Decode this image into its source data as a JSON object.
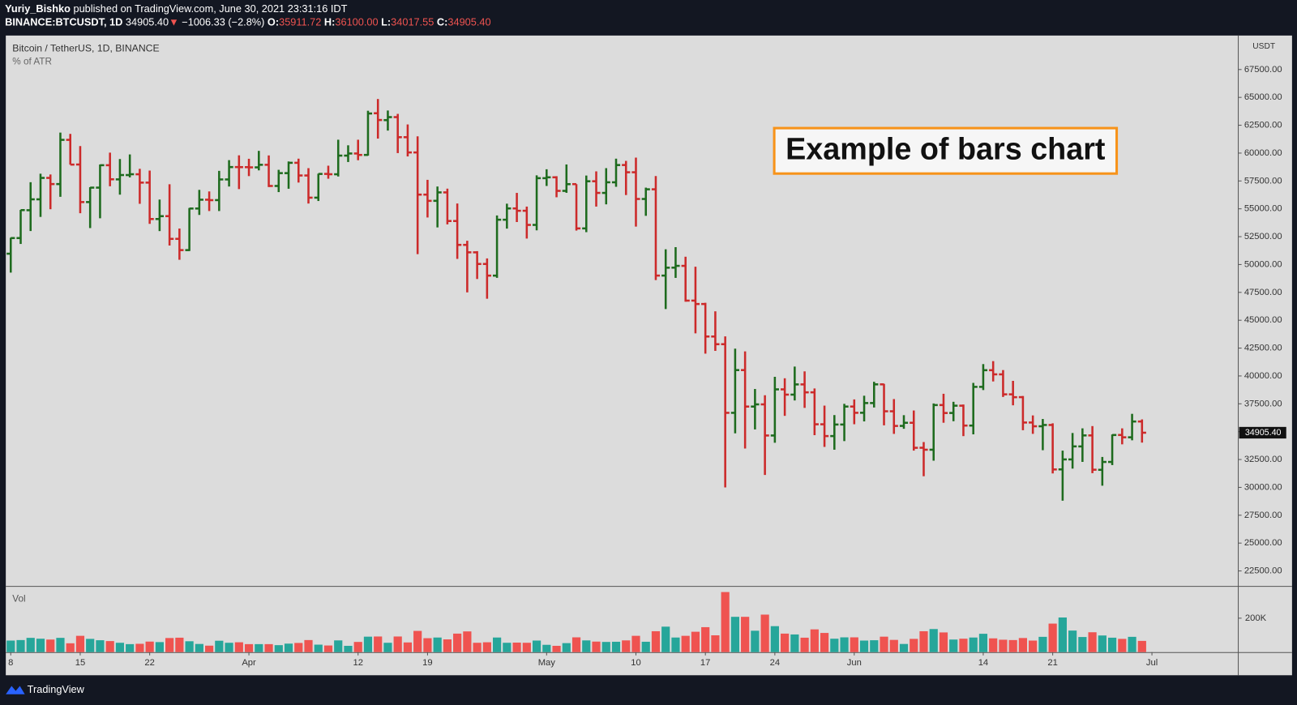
{
  "header": {
    "author": "Yuriy_Bishko",
    "published": "published on TradingView.com, June 30, 2021 23:31:16 IDT",
    "symbol": "BINANCE:BTCUSDT, 1D",
    "last": "34905.40",
    "arrow": "▼",
    "change": "−1006.33 (−2.8%)",
    "o_key": "O:",
    "o": "35911.72",
    "h_key": "H:",
    "h": "36100.00",
    "l_key": "L:",
    "l": "34017.55",
    "c_key": "C:",
    "c": "34905.40"
  },
  "chart_data": {
    "type": "ohlc",
    "title": "Bitcoin / TetherUS, 1D, BINANCE",
    "subtitle": "% of ATR",
    "annotation": "Example of bars chart",
    "currency": "USDT",
    "up_color": "#1e6b1e",
    "down_color": "#cc2a2a",
    "open": [
      50971,
      52375,
      54874,
      55851,
      57773,
      57221,
      61188,
      58976,
      55605,
      56900,
      58912,
      57641,
      58030,
      58100,
      57351,
      54083,
      54342,
      52304,
      51293,
      55026,
      55817,
      55781,
      57635,
      58746,
      58739,
      58720,
      58950,
      57051,
      58202,
      59129,
      57990,
      56000,
      58132,
      58100,
      59774,
      59964,
      59835,
      63576,
      62960,
      63229,
      61427,
      60058,
      56274,
      55717,
      56473,
      53906,
      51763,
      51094,
      50050,
      49004,
      54021,
      55033,
      54825,
      53556,
      57750,
      57828,
      56610,
      57214,
      53241,
      57473,
      56427,
      57380,
      58929,
      58280,
      55883,
      56751,
      49007,
      49719,
      49880,
      46762,
      46457,
      43538,
      42850,
      36690,
      40526,
      37252,
      37449,
      34655,
      38796,
      38324,
      39241,
      38529,
      35662,
      34605,
      35641,
      37253,
      36695,
      37568,
      39246,
      36829,
      35517,
      35796,
      33556,
      33380,
      37389,
      36677,
      37331,
      35546,
      39021,
      40516,
      40143,
      38349,
      38098,
      35820,
      35483,
      35600,
      31614,
      32509,
      33675,
      34663,
      31576,
      32283,
      34702,
      34494,
      35911.72
    ],
    "high": [
      52402,
      54900,
      57387,
      58150,
      58081,
      61844,
      61724,
      60633,
      56939,
      58978,
      60040,
      59468,
      59880,
      58589,
      58430,
      55830,
      57200,
      53230,
      55073,
      56700,
      56559,
      58405,
      59368,
      59800,
      59490,
      60200,
      59791,
      58500,
      59250,
      59500,
      58650,
      58153,
      58869,
      61200,
      60699,
      61200,
      63800,
      64854,
      63822,
      63519,
      62572,
      61500,
      57600,
      57000,
      56810,
      55477,
      52132,
      51200,
      50548,
      54400,
      55460,
      56428,
      55200,
      58000,
      58549,
      57927,
      58980,
      57214,
      57987,
      58360,
      58650,
      59500,
      59300,
      59592,
      56900,
      57939,
      51367,
      51560,
      50700,
      49800,
      46565,
      45800,
      43546,
      42451,
      42200,
      38829,
      38270,
      39920,
      39791,
      40841,
      40411,
      38877,
      37338,
      36488,
      37499,
      37894,
      38225,
      39476,
      39289,
      37925,
      36480,
      36900,
      34069,
      37534,
      38400,
      37680,
      37437,
      39380,
      41064,
      41330,
      40527,
      39559,
      38200,
      36457,
      36137,
      35750,
      33298,
      34881,
      35298,
      35500,
      32730,
      34749,
      35297,
      36600,
      36100
    ],
    "low": [
      49274,
      51845,
      53005,
      54272,
      54962,
      56078,
      58966,
      54600,
      53271,
      54147,
      57023,
      56270,
      57820,
      55450,
      53650,
      53000,
      51700,
      50427,
      51214,
      54450,
      54800,
      54800,
      57000,
      56769,
      57935,
      58450,
      56955,
      56500,
      56800,
      57356,
      55473,
      55700,
      57700,
      57900,
      59200,
      59360,
      59770,
      61301,
      62020,
      60000,
      59700,
      50931,
      54220,
      53330,
      53602,
      50500,
      47500,
      48700,
      46930,
      48800,
      53223,
      53813,
      52330,
      53066,
      57050,
      56035,
      56435,
      53047,
      52900,
      55200,
      55400,
      56975,
      56235,
      53400,
      54370,
      48600,
      46000,
      48800,
      46664,
      43825,
      42001,
      42250,
      30000,
      34850,
      33488,
      35200,
      31111,
      34000,
      36419,
      37800,
      37134,
      34684,
      33632,
      33379,
      34153,
      35666,
      35920,
      37170,
      35567,
      34800,
      35258,
      33300,
      31000,
      32396,
      35800,
      35936,
      34600,
      34757,
      38733,
      39506,
      38116,
      37365,
      35129,
      34803,
      33336,
      31251,
      28805,
      31683,
      32286,
      31275,
      30151,
      32000,
      33862,
      34225,
      34017.55
    ],
    "close": [
      52375,
      54884,
      55851,
      57773,
      57221,
      61188,
      58968,
      55605,
      56900,
      58912,
      57649,
      58030,
      58102,
      57351,
      54083,
      54340,
      52303,
      51293,
      55025,
      55817,
      55777,
      57635,
      58746,
      58740,
      58720,
      58950,
      57051,
      58202,
      59129,
      57991,
      56000,
      58131,
      58102,
      59774,
      59964,
      59834,
      63554,
      62970,
      63229,
      61427,
      60058,
      56274,
      55715,
      56473,
      53906,
      51763,
      51094,
      50050,
      49004,
      54021,
      55033,
      54824,
      53555,
      57750,
      57828,
      56610,
      57213,
      53241,
      57473,
      56428,
      57380,
      58928,
      58280,
      55883,
      56750,
      49007,
      49716,
      49880,
      46760,
      46457,
      43538,
      42849,
      36690,
      40526,
      37252,
      37449,
      34655,
      38796,
      38324,
      39241,
      38529,
      35663,
      34605,
      35641,
      37253,
      36693,
      37568,
      39246,
      36829,
      35513,
      35796,
      33552,
      33380,
      37388,
      36675,
      37331,
      35546,
      39020,
      40516,
      40144,
      38349,
      38092,
      35820,
      35483,
      35600,
      31608,
      32509,
      33678,
      34663,
      31584,
      32283,
      34700,
      34494,
      35911,
      34905.4
    ],
    "xlim": [
      -0.5,
      123.7
    ],
    "xticks": [
      {
        "value": 0,
        "label": "8"
      },
      {
        "value": 7,
        "label": "15"
      },
      {
        "value": 14,
        "label": "22"
      },
      {
        "value": 24,
        "label": "Apr"
      },
      {
        "value": 35,
        "label": "12"
      },
      {
        "value": 42,
        "label": "19"
      },
      {
        "value": 54,
        "label": "May"
      },
      {
        "value": 63,
        "label": "10"
      },
      {
        "value": 70,
        "label": "17"
      },
      {
        "value": 77,
        "label": "24"
      },
      {
        "value": 85,
        "label": "Jun"
      },
      {
        "value": 98,
        "label": "14"
      },
      {
        "value": 105,
        "label": "21"
      },
      {
        "value": 115,
        "label": "Jul"
      }
    ],
    "ylim": [
      21150,
      70550
    ],
    "yticks": [
      {
        "value": 22500,
        "label": "22500.00"
      },
      {
        "value": 25000,
        "label": "25000.00"
      },
      {
        "value": 27500,
        "label": "27500.00"
      },
      {
        "value": 30000,
        "label": "30000.00"
      },
      {
        "value": 32500,
        "label": "32500.00"
      },
      {
        "value": 35000,
        "label": "35000.00"
      },
      {
        "value": 37500,
        "label": "37500.00"
      },
      {
        "value": 40000,
        "label": "40000.00"
      },
      {
        "value": 42500,
        "label": "42500.00"
      },
      {
        "value": 45000,
        "label": "45000.00"
      },
      {
        "value": 47500,
        "label": "47500.00"
      },
      {
        "value": 50000,
        "label": "50000.00"
      },
      {
        "value": 52500,
        "label": "52500.00"
      },
      {
        "value": 55000,
        "label": "55000.00"
      },
      {
        "value": 57500,
        "label": "57500.00"
      },
      {
        "value": 60000,
        "label": "60000.00"
      },
      {
        "value": 62500,
        "label": "62500.00"
      },
      {
        "value": 65000,
        "label": "65000.00"
      },
      {
        "value": 67500,
        "label": "67500.00"
      }
    ],
    "volume": {
      "label": "Vol",
      "up_color": "#26a69a",
      "down_color": "#ef5350",
      "ylim": [
        0,
        380000
      ],
      "yticks": [
        {
          "value": 200000,
          "label": "200K"
        }
      ],
      "values": [
        68000,
        71000,
        84000,
        79000,
        74000,
        84000,
        52000,
        96000,
        78000,
        70000,
        65000,
        55000,
        47000,
        49000,
        62000,
        59000,
        83000,
        85000,
        64000,
        48000,
        38000,
        67000,
        55000,
        58000,
        47000,
        47000,
        47000,
        41000,
        50000,
        54000,
        71000,
        44000,
        39000,
        69000,
        37000,
        60000,
        91000,
        92000,
        55000,
        92000,
        57000,
        125000,
        82000,
        86000,
        75000,
        109000,
        122000,
        55000,
        58000,
        86000,
        55000,
        56000,
        55000,
        68000,
        43000,
        37000,
        53000,
        87000,
        69000,
        62000,
        60000,
        61000,
        69000,
        96000,
        61000,
        123000,
        150000,
        86000,
        96000,
        120000,
        147000,
        99000,
        354000,
        208000,
        208000,
        126000,
        221000,
        153000,
        109000,
        104000,
        85000,
        134000,
        113000,
        79000,
        87000,
        87000,
        68000,
        70000,
        91000,
        72000,
        48000,
        78000,
        123000,
        136000,
        116000,
        74000,
        79000,
        86000,
        108000,
        81000,
        73000,
        71000,
        83000,
        68000,
        90000,
        168000,
        204000,
        127000,
        89000,
        117000,
        98000,
        85000,
        78000,
        90000,
        66000
      ]
    }
  },
  "footer": {
    "brand": "TradingView"
  }
}
